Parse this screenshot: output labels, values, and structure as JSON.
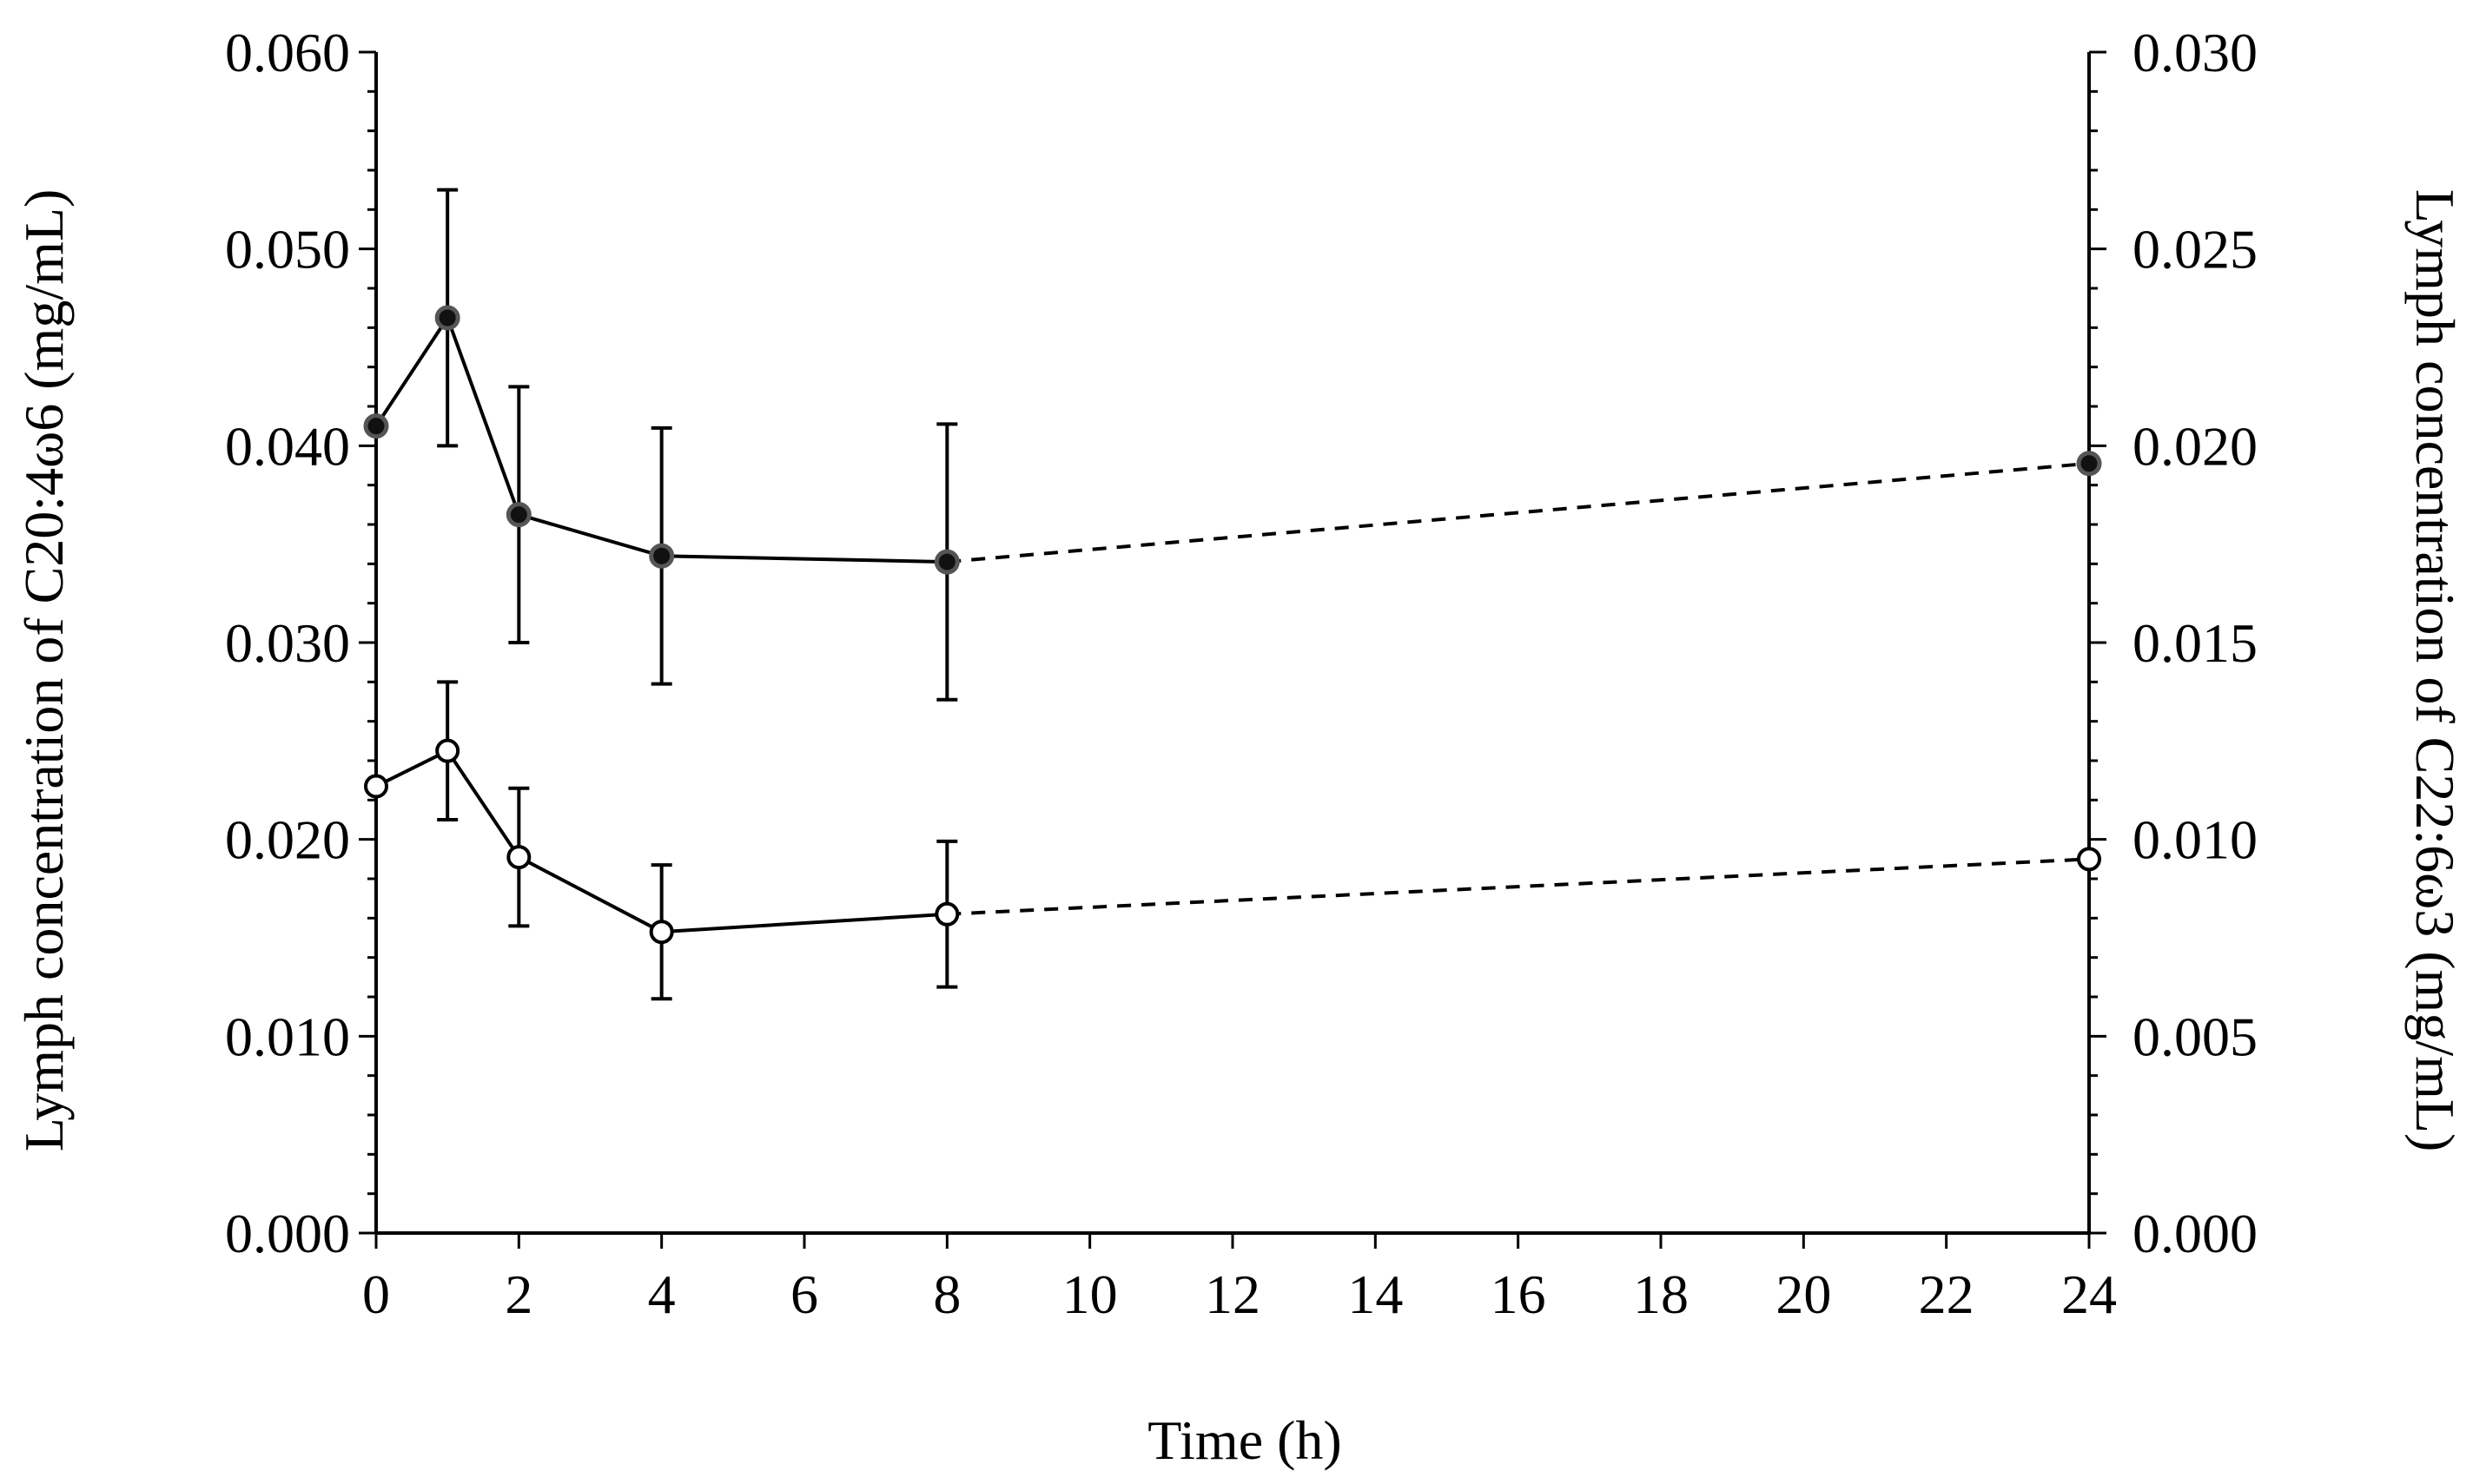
{
  "chart_data": {
    "type": "line",
    "xlabel": "Time (h)",
    "ylabel_left": "Lymph concentration of C20:4ω6 (mg/mL)",
    "ylabel_right": "Lymph concentration of C22:6ω3 (mg/mL)",
    "xlim": [
      0,
      24
    ],
    "x_ticks": [
      0,
      2,
      4,
      6,
      8,
      10,
      12,
      14,
      16,
      18,
      20,
      22,
      24
    ],
    "x_tick_labels": [
      "0",
      "2",
      "4",
      "6",
      "8",
      "10",
      "12",
      "14",
      "16",
      "18",
      "20",
      "22",
      "24"
    ],
    "ylim_left": [
      0,
      0.06
    ],
    "y_ticks_left": [
      0,
      0.01,
      0.02,
      0.03,
      0.04,
      0.05,
      0.06
    ],
    "y_tick_labels_left": [
      "0.000",
      "0.010",
      "0.020",
      "0.030",
      "0.040",
      "0.050",
      "0.060"
    ],
    "ylim_right": [
      0,
      0.03
    ],
    "y_ticks_right": [
      0,
      0.005,
      0.01,
      0.015,
      0.02,
      0.025,
      0.03
    ],
    "y_tick_labels_right": [
      "0.000",
      "0.005",
      "0.010",
      "0.015",
      "0.020",
      "0.025",
      "0.030"
    ],
    "series": [
      {
        "name": "C20:4ω6",
        "axis": "left",
        "marker": "filled",
        "x": [
          0,
          1,
          2,
          4,
          8,
          24
        ],
        "y": [
          0.041,
          0.0465,
          0.0365,
          0.0344,
          0.0341,
          0.0391
        ],
        "err": [
          0.0,
          0.0065,
          0.0065,
          0.0065,
          0.007,
          0.0
        ],
        "solid_until_index": 4
      },
      {
        "name": "C22:6ω3",
        "axis": "right",
        "marker": "open",
        "x": [
          0,
          1,
          2,
          4,
          8,
          24
        ],
        "y": [
          0.01135,
          0.01225,
          0.00955,
          0.00765,
          0.0081,
          0.0095
        ],
        "err": [
          0.0,
          0.00175,
          0.00175,
          0.0017,
          0.00185,
          0.0
        ],
        "solid_until_index": 4
      }
    ]
  }
}
